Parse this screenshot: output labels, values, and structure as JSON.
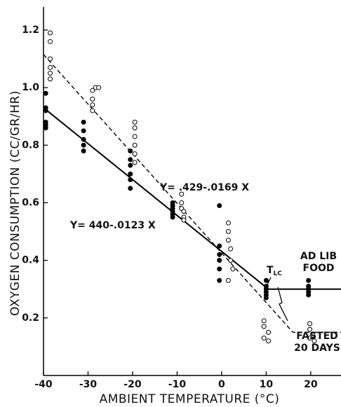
{
  "chart_data": {
    "type": "scatter",
    "x_label": "AMBIENT TEMPERATURE (°C)",
    "y_label": "OXYGEN CONSUMPTION (CC/GR/HR)",
    "xlim": [
      -40,
      26.8
    ],
    "ylim": [
      0,
      1.28
    ],
    "xticks": [
      -40,
      -30,
      -20,
      -10,
      0,
      10,
      20
    ],
    "yticks": [
      0.2,
      0.4,
      0.6,
      0.8,
      {
        "value": 1,
        "label": "1.0"
      },
      1.2
    ],
    "series": [
      {
        "name": "ad lib points",
        "marker": "filled",
        "color": "#000",
        "x": [
          -39.5,
          -39.5,
          -39.5,
          -39.5,
          -39.5,
          -39.5,
          -31,
          -31,
          -31,
          -31,
          -31,
          -20.5,
          -20.5,
          -20.5,
          -20.5,
          -20.5,
          -20.5,
          -11,
          -11,
          -11,
          -11,
          -11,
          -11,
          -0.5,
          -0.5,
          -0.5,
          -0.5,
          -0.5,
          -0.5,
          10,
          10,
          10,
          10,
          10,
          10,
          19.5,
          19.5,
          19.5,
          19.5,
          19.5
        ],
        "y": [
          0.98,
          0.93,
          0.92,
          0.88,
          0.87,
          0.86,
          0.88,
          0.85,
          0.82,
          0.8,
          0.78,
          0.78,
          0.75,
          0.73,
          0.7,
          0.68,
          0.65,
          0.6,
          0.59,
          0.58,
          0.57,
          0.56,
          0.55,
          0.59,
          0.45,
          0.42,
          0.4,
          0.37,
          0.33,
          0.33,
          0.31,
          0.3,
          0.29,
          0.28,
          0.27,
          0.33,
          0.31,
          0.3,
          0.29,
          0.28
        ]
      },
      {
        "name": "fasted points",
        "marker": "open",
        "color": "#000",
        "x": [
          -38.5,
          -38.5,
          -38.5,
          -38.5,
          -38.5,
          -38.5,
          -29,
          -28.3,
          -27.6,
          -29,
          -29,
          -29,
          -19.5,
          -19.5,
          -19.5,
          -19.5,
          -19.5,
          -19.5,
          -9,
          -9,
          -9,
          -8.5,
          -8.5,
          -8.5,
          1.5,
          1.5,
          1.5,
          2,
          2,
          2.5,
          1.5,
          9.5,
          9.5,
          10.5,
          9.5,
          10.5,
          19.8,
          19.8,
          20.5,
          19.8,
          20.8
        ],
        "y": [
          1.19,
          1.16,
          1.1,
          1.07,
          1.05,
          1.03,
          0.99,
          1.0,
          1.0,
          0.96,
          0.94,
          0.92,
          0.88,
          0.86,
          0.83,
          0.8,
          0.77,
          0.74,
          0.63,
          0.6,
          0.58,
          0.57,
          0.55,
          0.54,
          0.53,
          0.5,
          0.47,
          0.44,
          0.4,
          0.37,
          0.33,
          0.19,
          0.17,
          0.15,
          0.13,
          0.12,
          0.18,
          0.16,
          0.14,
          0.13,
          0.12
        ]
      },
      {
        "name": "ad lib fit",
        "style": "solid",
        "color": "#000",
        "x": [
          -40,
          10.5,
          26.8
        ],
        "y": [
          0.93,
          0.3,
          0.3
        ]
      },
      {
        "name": "fasted fit",
        "style": "dashed",
        "color": "#000",
        "x": [
          -40,
          16,
          26.8
        ],
        "y": [
          1.115,
          0.15,
          0.15
        ]
      }
    ],
    "annotations": [
      {
        "lines": [
          "Y= .429-.0169 X"
        ]
      },
      {
        "lines": [
          "Y= 440-.0123 X"
        ]
      },
      {
        "lines": [
          "AD LIB",
          "FOOD"
        ]
      },
      {
        "lines": [
          "FASTED",
          "20 DAYS"
        ]
      },
      {
        "lines": [
          "T"
        ],
        "sub": "LC"
      }
    ]
  }
}
